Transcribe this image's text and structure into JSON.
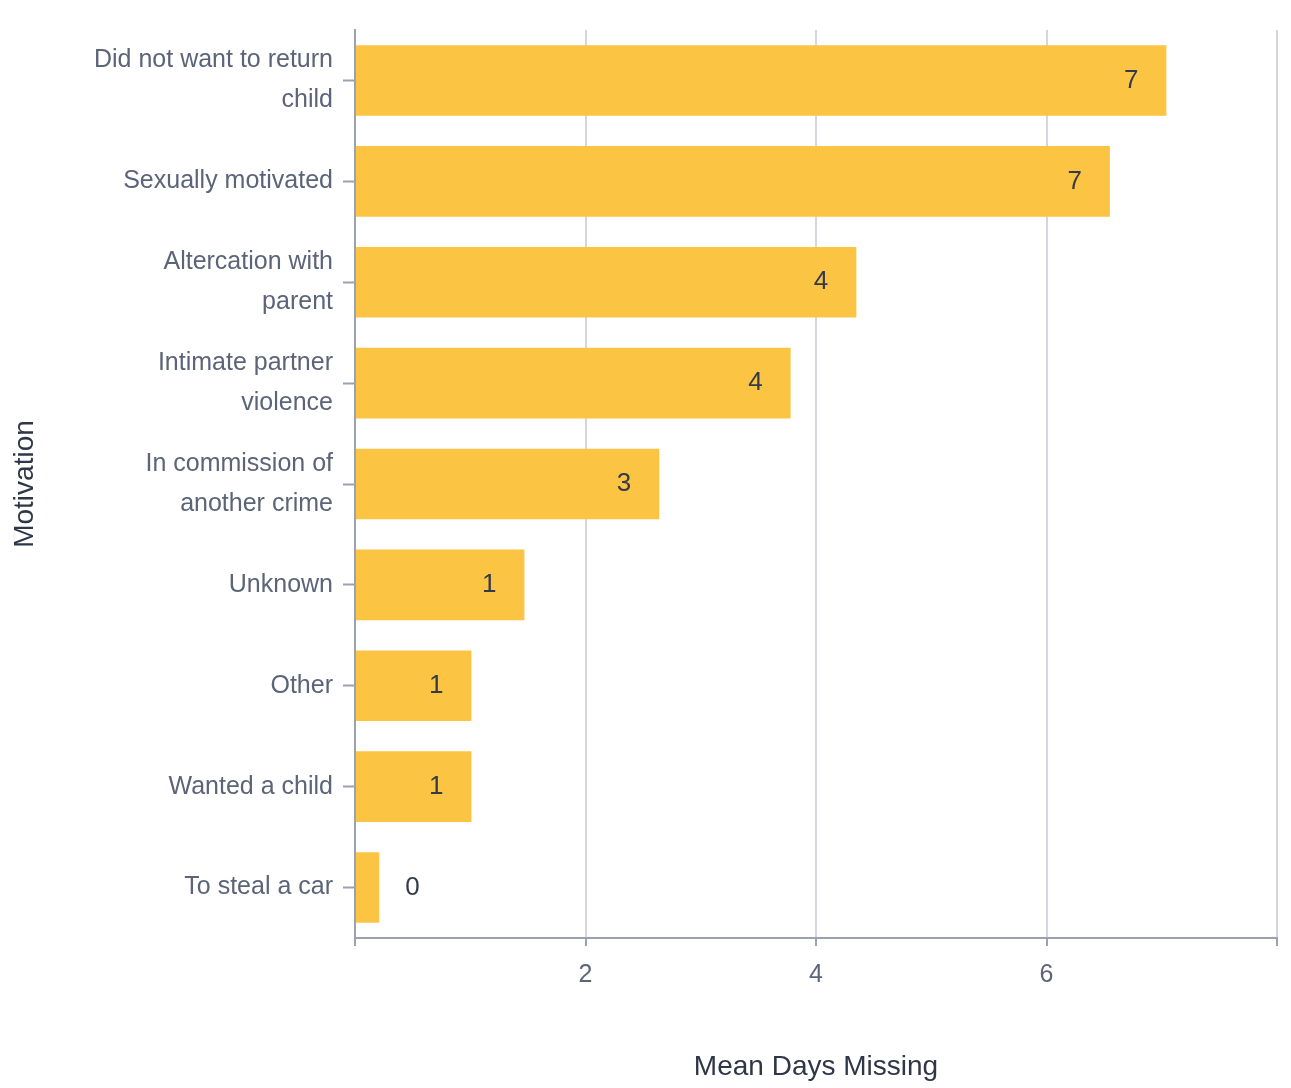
{
  "chart_data": {
    "type": "bar",
    "orientation": "horizontal",
    "xlabel": "Mean Days Missing",
    "ylabel": "Motivation",
    "categories": [
      "Did not want to return child",
      "Sexually motivated",
      "Altercation with parent",
      "Intimate partner violence",
      "In commission of another crime",
      "Unknown",
      "Other",
      "Wanted a child",
      "To steal a car"
    ],
    "values": [
      7.04,
      6.55,
      4.35,
      3.78,
      2.64,
      1.47,
      1.01,
      1.01,
      0.21
    ],
    "value_labels": [
      "7",
      "7",
      "4",
      "4",
      "3",
      "1",
      "1",
      "1",
      "0"
    ],
    "color": "#fcc443",
    "xlim": [
      0,
      8
    ],
    "xticks": [
      {
        "value": 0,
        "label": null
      },
      2,
      4,
      6,
      {
        "value": 8,
        "label": null
      }
    ],
    "grid": "x",
    "legend": false
  }
}
